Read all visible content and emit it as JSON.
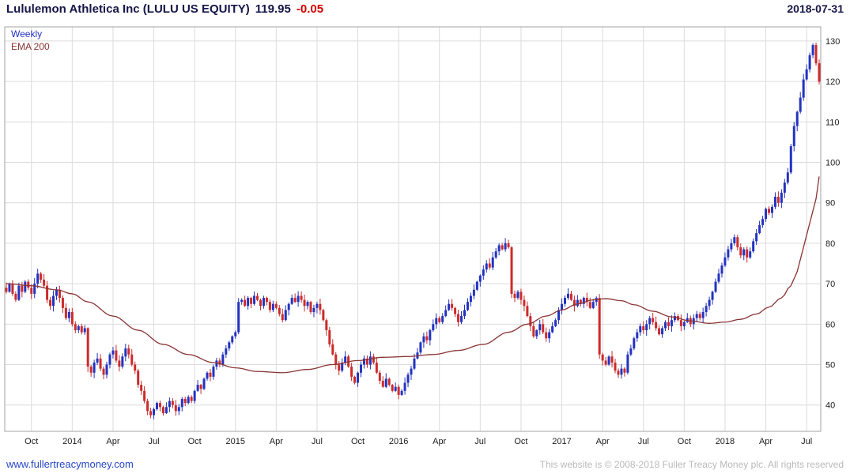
{
  "header": {
    "title": "Lululemon Athletica Inc (LULU US EQUITY)",
    "last_price": "119.95",
    "change": "-0.05",
    "date": "2018-07-31"
  },
  "legend": {
    "series_label": "Weekly",
    "ema_label": "EMA 200"
  },
  "footer": {
    "website": "www.fullertreacymoney.com",
    "copyright": "This website is © 2008-2018 Fuller Treacy Money plc. All rights reserved"
  },
  "colors": {
    "background": "#ffffff",
    "up": "#2333c0",
    "down": "#cc2b2b",
    "ema": "#8a3333",
    "grid": "#dcdcdc",
    "plot_border": "#a3a3a3",
    "title": "#151547",
    "neg": "#d40000",
    "link": "#2747c8",
    "muted": "#b9b9b9",
    "axis": "#1c1c1c"
  },
  "chart_data": {
    "type": "candlestick",
    "title": "Lululemon Athletica Inc (LULU US EQUITY)",
    "timeframe": "Weekly",
    "overlay": "EMA 200",
    "as_of": "2018-07-31",
    "last": 119.95,
    "change": -0.05,
    "ylim": [
      33.5,
      133.5
    ],
    "y_ticks": [
      40,
      50,
      60,
      70,
      80,
      90,
      100,
      110,
      120,
      130
    ],
    "x_ticks": [
      [
        8,
        "Oct"
      ],
      [
        21,
        "2014"
      ],
      [
        34,
        "Apr"
      ],
      [
        47,
        "Jul"
      ],
      [
        60,
        "Oct"
      ],
      [
        73,
        "2015"
      ],
      [
        86,
        "Apr"
      ],
      [
        99,
        "Jul"
      ],
      [
        112,
        "Oct"
      ],
      [
        125,
        "2016"
      ],
      [
        138,
        "Apr"
      ],
      [
        151,
        "Jul"
      ],
      [
        164,
        "Oct"
      ],
      [
        177,
        "2017"
      ],
      [
        190,
        "Apr"
      ],
      [
        203,
        "Jul"
      ],
      [
        216,
        "Oct"
      ],
      [
        229,
        "2018"
      ],
      [
        242,
        "Apr"
      ],
      [
        255,
        "Jul"
      ]
    ],
    "weekly_closes": [
      68.0,
      70.0,
      67.5,
      66.0,
      69.5,
      68.0,
      70.5,
      69.0,
      67.5,
      70.0,
      72.5,
      71.0,
      69.5,
      66.0,
      64.5,
      67.0,
      68.5,
      66.5,
      64.0,
      61.5,
      63.0,
      60.0,
      58.5,
      59.5,
      58.0,
      59.0,
      49.5,
      48.0,
      50.5,
      51.5,
      49.0,
      47.5,
      50.0,
      52.5,
      53.5,
      51.0,
      49.5,
      52.0,
      54.0,
      52.5,
      50.0,
      48.5,
      45.0,
      43.5,
      41.0,
      38.5,
      37.5,
      39.0,
      40.5,
      39.5,
      38.0,
      39.5,
      41.0,
      40.0,
      38.5,
      39.5,
      41.5,
      40.5,
      42.0,
      41.0,
      43.5,
      45.0,
      44.0,
      46.5,
      48.0,
      47.0,
      49.5,
      51.0,
      50.0,
      52.5,
      54.0,
      55.5,
      57.0,
      58.0,
      65.5,
      66.0,
      64.5,
      66.5,
      65.0,
      67.0,
      66.0,
      64.5,
      66.5,
      65.5,
      63.5,
      65.0,
      64.0,
      62.5,
      61.0,
      63.5,
      65.0,
      66.5,
      65.5,
      67.0,
      66.0,
      64.5,
      65.5,
      63.0,
      64.0,
      65.0,
      63.5,
      61.0,
      58.5,
      55.0,
      52.5,
      50.0,
      48.5,
      50.5,
      52.0,
      49.5,
      47.0,
      45.5,
      48.0,
      50.0,
      51.5,
      50.0,
      52.0,
      50.5,
      48.0,
      46.0,
      44.5,
      46.5,
      45.0,
      43.5,
      44.5,
      42.5,
      43.5,
      45.5,
      47.5,
      49.0,
      51.5,
      53.0,
      55.5,
      57.0,
      56.0,
      58.5,
      60.0,
      61.5,
      60.5,
      62.0,
      63.5,
      65.0,
      64.0,
      62.5,
      60.5,
      62.0,
      63.5,
      65.5,
      67.0,
      68.5,
      70.5,
      72.0,
      73.5,
      75.0,
      74.0,
      76.5,
      78.0,
      79.5,
      78.5,
      80.0,
      79.0,
      67.5,
      66.5,
      68.0,
      66.0,
      64.5,
      62.0,
      59.5,
      57.0,
      58.5,
      60.0,
      58.0,
      56.5,
      58.0,
      59.5,
      61.0,
      63.5,
      65.0,
      66.5,
      67.5,
      66.0,
      64.5,
      66.0,
      65.0,
      66.5,
      65.5,
      64.0,
      65.5,
      66.5,
      52.5,
      51.0,
      50.0,
      52.0,
      50.5,
      48.5,
      47.5,
      49.0,
      48.0,
      52.5,
      54.0,
      56.5,
      58.0,
      59.5,
      58.5,
      60.0,
      61.5,
      60.5,
      59.0,
      57.5,
      59.0,
      60.5,
      59.5,
      61.0,
      62.0,
      61.0,
      59.5,
      60.5,
      61.5,
      60.0,
      61.5,
      62.5,
      61.5,
      63.0,
      64.5,
      66.0,
      68.0,
      70.5,
      72.5,
      74.5,
      76.5,
      78.5,
      80.0,
      81.5,
      79.0,
      77.0,
      78.5,
      76.5,
      78.0,
      80.5,
      82.5,
      84.5,
      86.0,
      88.5,
      87.5,
      89.0,
      91.5,
      90.0,
      92.5,
      95.0,
      97.5,
      104.0,
      109.0,
      112.5,
      116.0,
      120.5,
      123.0,
      126.5,
      129.0,
      124.5,
      119.95
    ],
    "wick_amplitude": 1.4,
    "ema_anchors": [
      [
        0,
        70.0
      ],
      [
        8,
        69.5
      ],
      [
        16,
        68.5
      ],
      [
        21,
        67.5
      ],
      [
        26,
        65.5
      ],
      [
        34,
        62.0
      ],
      [
        42,
        58.5
      ],
      [
        50,
        55.0
      ],
      [
        58,
        52.5
      ],
      [
        66,
        50.5
      ],
      [
        73,
        49.2
      ],
      [
        80,
        48.3
      ],
      [
        88,
        48.0
      ],
      [
        96,
        48.8
      ],
      [
        104,
        50.0
      ],
      [
        112,
        51.0
      ],
      [
        120,
        51.8
      ],
      [
        128,
        52.0
      ],
      [
        136,
        52.5
      ],
      [
        144,
        53.5
      ],
      [
        152,
        55.0
      ],
      [
        160,
        58.0
      ],
      [
        166,
        60.0
      ],
      [
        172,
        62.0
      ],
      [
        177,
        63.5
      ],
      [
        182,
        65.0
      ],
      [
        187,
        66.0
      ],
      [
        191,
        66.3
      ],
      [
        196,
        65.8
      ],
      [
        200,
        64.8
      ],
      [
        206,
        63.2
      ],
      [
        212,
        61.8
      ],
      [
        218,
        60.8
      ],
      [
        224,
        60.2
      ],
      [
        229,
        60.5
      ],
      [
        234,
        61.2
      ],
      [
        239,
        62.5
      ],
      [
        243,
        64.2
      ],
      [
        247,
        66.5
      ],
      [
        250,
        69.5
      ],
      [
        252,
        73.0
      ],
      [
        254,
        79.0
      ],
      [
        256,
        85.0
      ],
      [
        258,
        91.0
      ],
      [
        259,
        96.5
      ]
    ],
    "grid": true,
    "legend_position": "top-left"
  }
}
